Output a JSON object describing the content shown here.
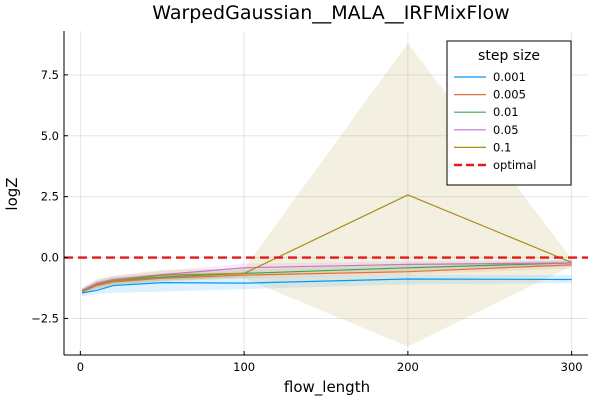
{
  "chart_data": {
    "type": "line",
    "title": "WarpedGaussian__MALA__IRFMixFlow",
    "xlabel": "flow_length",
    "ylabel": "logZ",
    "xlim": [
      -10,
      310
    ],
    "ylim": [
      -4.0,
      9.3
    ],
    "x_ticks": [
      0,
      100,
      200,
      300
    ],
    "y_ticks": [
      -2.5,
      0.0,
      2.5,
      5.0,
      7.5
    ],
    "x_tick_labels": [
      "0",
      "100",
      "200",
      "300"
    ],
    "y_tick_labels": [
      "−2.5",
      "0.0",
      "2.5",
      "5.0",
      "7.5"
    ],
    "grid": true,
    "legend": {
      "title": "step size",
      "position": "top-right"
    },
    "x": [
      1,
      10,
      20,
      50,
      100,
      200,
      300
    ],
    "series": [
      {
        "name": "0.001",
        "color": "#009AFA",
        "values": [
          -1.45,
          -1.35,
          -1.15,
          -1.03,
          -1.05,
          -0.88,
          -0.9
        ],
        "lower": [
          -1.6,
          -1.5,
          -1.45,
          -1.4,
          -1.3,
          -1.1,
          -1.05
        ],
        "upper": [
          -1.3,
          -1.2,
          -0.9,
          -0.75,
          -0.8,
          -0.7,
          -0.72
        ]
      },
      {
        "name": "0.005",
        "color": "#E36F47",
        "values": [
          -1.4,
          -1.15,
          -1.0,
          -0.85,
          -0.72,
          -0.58,
          -0.3
        ],
        "lower": [
          -1.5,
          -1.3,
          -1.15,
          -1.0,
          -0.85,
          -0.7,
          -0.45
        ],
        "upper": [
          -1.3,
          -1.0,
          -0.85,
          -0.7,
          -0.6,
          -0.45,
          -0.15
        ]
      },
      {
        "name": "0.01",
        "color": "#3EA44E",
        "values": [
          -1.38,
          -1.1,
          -0.95,
          -0.8,
          -0.65,
          -0.42,
          -0.22
        ],
        "lower": [
          -1.48,
          -1.25,
          -1.1,
          -0.95,
          -0.8,
          -0.55,
          -0.35
        ],
        "upper": [
          -1.28,
          -0.95,
          -0.8,
          -0.65,
          -0.5,
          -0.3,
          -0.1
        ]
      },
      {
        "name": "0.05",
        "color": "#C271D2",
        "values": [
          -1.35,
          -1.05,
          -0.9,
          -0.7,
          -0.42,
          -0.28,
          -0.22
        ],
        "lower": [
          -1.45,
          -1.2,
          -1.05,
          -0.85,
          -0.6,
          -0.4,
          -0.35
        ],
        "upper": [
          -1.25,
          -0.9,
          -0.75,
          -0.55,
          -0.25,
          -0.15,
          -0.1
        ]
      },
      {
        "name": "0.1",
        "color": "#AC8D18",
        "values": [
          -1.4,
          -1.1,
          -0.95,
          -0.72,
          -0.65,
          2.57,
          -0.2
        ],
        "lower": [
          -1.55,
          -1.3,
          -1.15,
          -0.95,
          -0.85,
          -3.65,
          -0.35
        ],
        "upper": [
          -1.25,
          -0.9,
          -0.75,
          -0.5,
          -0.45,
          8.8,
          -0.05
        ]
      }
    ],
    "reference_line": {
      "name": "optimal",
      "y": 0.0,
      "color": "#E41A1C",
      "style": "dashed"
    }
  }
}
